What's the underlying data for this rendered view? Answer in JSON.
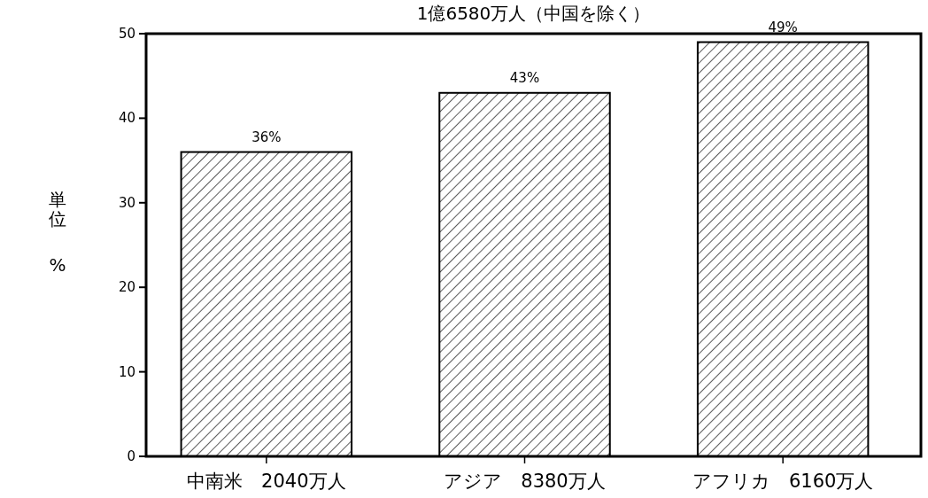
{
  "chart_data": {
    "type": "bar",
    "title": "1億6580万人（中国を除く）",
    "ylabel": "単位 %",
    "categories": [
      "中南米　2040万人",
      "アジア　8380万人",
      "アフリカ　6160万人"
    ],
    "values": [
      36,
      43,
      49
    ],
    "value_labels": [
      "36%",
      "43%",
      "49%"
    ],
    "color": "#000000",
    "ylim": [
      0,
      50
    ],
    "yticks": [
      0,
      10,
      20,
      30,
      40,
      50
    ],
    "grid": false
  }
}
